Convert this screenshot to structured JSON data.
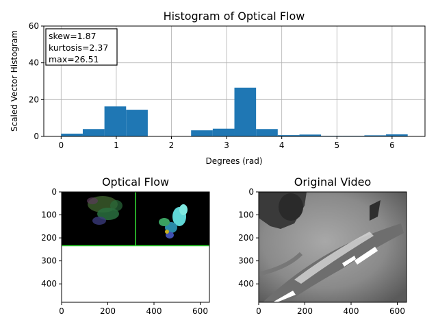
{
  "chart_data": [
    {
      "type": "bar",
      "title": "Histogram of Optical Flow",
      "xlabel": "Degrees (rad)",
      "ylabel": "Scaled Vector Histogram",
      "xlim": [
        -0.314,
        6.597
      ],
      "ylim": [
        0,
        60
      ],
      "xticks": [
        0,
        1,
        2,
        3,
        4,
        5,
        6
      ],
      "yticks": [
        0,
        20,
        40,
        60
      ],
      "grid": true,
      "bar_color": "#1f77b4",
      "bin_edges": [
        0,
        0.3927,
        0.7854,
        1.1781,
        1.5708,
        1.9635,
        2.3562,
        2.7489,
        3.1416,
        3.5343,
        3.927,
        4.3197,
        4.7124,
        5.1051,
        5.4978,
        5.8905,
        6.2832
      ],
      "values": [
        1.5,
        4.0,
        16.3,
        14.5,
        0,
        0,
        3.3,
        4.2,
        26.51,
        4.0,
        0.7,
        1.0,
        0.3,
        0.3,
        0.6,
        1.1
      ],
      "annotation": [
        "skew=1.87",
        "kurtosis=2.37",
        "max=26.51"
      ],
      "annotation_position": "top-left"
    },
    {
      "type": "image",
      "title": "Optical Flow",
      "xlim": [
        0,
        640
      ],
      "ylim": [
        480,
        0
      ],
      "xticks": [
        0,
        200,
        400,
        600
      ],
      "yticks": [
        0,
        100,
        200,
        300,
        400
      ],
      "content": "black flow frame with colored motion blobs and green grid lines, white below",
      "line_color": "#33dd33"
    },
    {
      "type": "image",
      "title": "Original Video",
      "xlim": [
        0,
        640
      ],
      "ylim": [
        480,
        0
      ],
      "xticks": [
        0,
        200,
        400,
        600
      ],
      "yticks": [
        0,
        100,
        200,
        300,
        400
      ],
      "content": "grayscale video frame showing a fish"
    }
  ]
}
